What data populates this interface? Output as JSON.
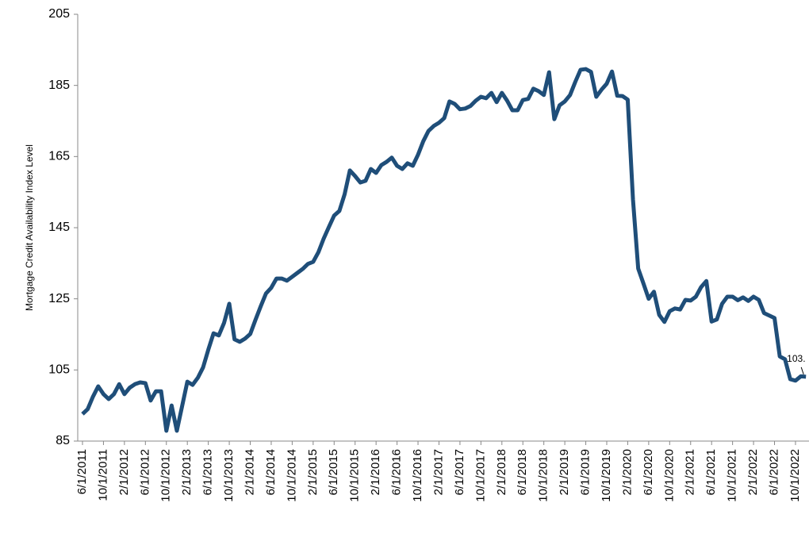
{
  "chart_data": {
    "type": "line",
    "y_label": "Mortgage Credit Availability Index Level",
    "ylim": [
      85,
      205
    ],
    "yticks": [
      85,
      105,
      125,
      145,
      165,
      185,
      205
    ],
    "categories": [
      "6/1/2011",
      null,
      null,
      null,
      "10/1/2011",
      null,
      null,
      null,
      "2/1/2012",
      null,
      null,
      null,
      "6/1/2012",
      null,
      null,
      null,
      "10/1/2012",
      null,
      null,
      null,
      "2/1/2013",
      null,
      null,
      null,
      "6/1/2013",
      null,
      null,
      null,
      "10/1/2013",
      null,
      null,
      null,
      "2/1/2014",
      null,
      null,
      null,
      "6/1/2014",
      null,
      null,
      null,
      "10/1/2014",
      null,
      null,
      null,
      "2/1/2015",
      null,
      null,
      null,
      "6/1/2015",
      null,
      null,
      null,
      "10/1/2015",
      null,
      null,
      null,
      "2/1/2016",
      null,
      null,
      null,
      "6/1/2016",
      null,
      null,
      null,
      "10/1/2016",
      null,
      null,
      null,
      "2/1/2017",
      null,
      null,
      null,
      "6/1/2017",
      null,
      null,
      null,
      "10/1/2017",
      null,
      null,
      null,
      "2/1/2018",
      null,
      null,
      null,
      "6/1/2018",
      null,
      null,
      null,
      "10/1/2018",
      null,
      null,
      null,
      "2/1/2019",
      null,
      null,
      null,
      "6/1/2019",
      null,
      null,
      null,
      "10/1/2019",
      null,
      null,
      null,
      "2/1/2020",
      null,
      null,
      null,
      "6/1/2020",
      null,
      null,
      null,
      "10/1/2020",
      null,
      null,
      null,
      "2/1/2021",
      null,
      null,
      null,
      "6/1/2021",
      null,
      null,
      null,
      "10/1/2021",
      null,
      null,
      null,
      "2/1/2022",
      null,
      null,
      null,
      "6/1/2022",
      null,
      null,
      null,
      "10/1/2022",
      null,
      null
    ],
    "series": [
      {
        "color": "#1f4e79",
        "values": [
          92.6,
          94,
          97.5,
          100.4,
          98.2,
          96.8,
          98.2,
          101,
          98.2,
          100,
          101,
          101.5,
          101.3,
          96.4,
          99,
          99,
          87.9,
          95,
          87.9,
          94.8,
          101.7,
          100.8,
          102.8,
          105.7,
          110.7,
          115.3,
          114.7,
          118.2,
          123.6,
          113.6,
          112.9,
          113.8,
          115.1,
          119.1,
          122.9,
          126.5,
          128.1,
          130.7,
          130.7,
          130.1,
          131.2,
          132.3,
          133.4,
          134.8,
          135.4,
          138.1,
          141.9,
          145.2,
          148.4,
          149.7,
          154.4,
          161.1,
          159.5,
          157.7,
          158.2,
          161.5,
          160.4,
          162.6,
          163.5,
          164.7,
          162.4,
          161.5,
          163.1,
          162.4,
          165.5,
          169.3,
          172.2,
          173.6,
          174.5,
          175.8,
          180.5,
          179.8,
          178.3,
          178.5,
          179.2,
          180.7,
          181.8,
          181.4,
          182.9,
          180.3,
          182.9,
          180.7,
          178,
          178,
          180.9,
          181.2,
          184.1,
          183.4,
          182.3,
          188.7,
          175.5,
          179.4,
          180.5,
          182.3,
          186,
          189.4,
          189.6,
          188.8,
          181.8,
          183.8,
          185.5,
          188.9,
          182.1,
          182,
          181,
          153,
          133.5,
          129.3,
          125,
          127,
          120.5,
          118.5,
          121.5,
          122.3,
          122,
          124.7,
          124.5,
          125.6,
          128.3,
          130,
          118.6,
          119.2,
          123.6,
          125.6,
          125.6,
          124.6,
          125.4,
          124.4,
          125.6,
          124.7,
          121,
          120.3,
          119.6,
          108.8,
          108,
          102.4,
          102,
          103.2,
          103.1
        ],
        "value_labels": [
          null,
          null,
          null,
          null,
          null,
          null,
          null,
          null,
          null,
          null,
          null,
          null,
          null,
          null,
          null,
          null,
          null,
          null,
          null,
          null,
          null,
          null,
          null,
          null,
          null,
          null,
          null,
          null,
          null,
          null,
          null,
          null,
          null,
          null,
          null,
          null,
          null,
          null,
          null,
          null,
          null,
          null,
          null,
          null,
          null,
          null,
          null,
          null,
          null,
          null,
          null,
          null,
          null,
          null,
          null,
          null,
          null,
          null,
          null,
          null,
          null,
          null,
          null,
          null,
          null,
          null,
          null,
          null,
          null,
          null,
          null,
          null,
          null,
          null,
          null,
          null,
          null,
          null,
          null,
          null,
          null,
          null,
          null,
          null,
          null,
          null,
          null,
          null,
          null,
          null,
          null,
          null,
          null,
          null,
          null,
          null,
          null,
          null,
          null,
          null,
          null,
          null,
          null,
          null,
          null,
          null,
          null,
          null,
          null,
          null,
          null,
          null,
          null,
          null,
          null,
          null,
          null,
          null,
          null,
          null,
          null,
          null,
          null,
          null,
          null,
          null,
          null,
          null,
          null,
          null,
          null,
          null,
          null,
          null,
          null,
          null,
          null,
          null,
          "103."
        ]
      }
    ]
  }
}
